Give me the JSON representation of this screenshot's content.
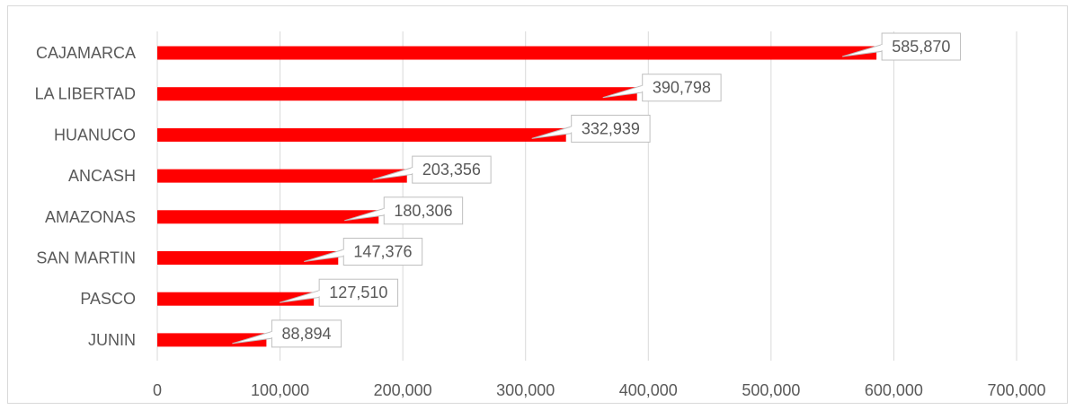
{
  "chart_data": {
    "type": "bar",
    "orientation": "horizontal",
    "title": "",
    "xlabel": "",
    "ylabel": "",
    "categories": [
      "CAJAMARCA",
      "LA LIBERTAD",
      "HUANUCO",
      "ANCASH",
      "AMAZONAS",
      "SAN MARTIN",
      "PASCO",
      "JUNIN"
    ],
    "values": [
      585870,
      390798,
      332939,
      203356,
      180306,
      147376,
      127510,
      88894
    ],
    "value_labels": [
      "585,870",
      "390,798",
      "332,939",
      "203,356",
      "180,306",
      "147,376",
      "127,510",
      "88,894"
    ],
    "xlim": [
      0,
      700000
    ],
    "x_ticks": [
      0,
      100000,
      200000,
      300000,
      400000,
      500000,
      600000,
      700000
    ],
    "x_tick_labels": [
      "0",
      "100,000",
      "200,000",
      "300,000",
      "400,000",
      "500,000",
      "600,000",
      "700,000"
    ],
    "grid": "vertical",
    "legend": "none",
    "colors": {
      "bar": "#ff0000",
      "grid": "#d9d9d9",
      "label_box_border": "#bfbfbf",
      "text": "#595959"
    }
  }
}
